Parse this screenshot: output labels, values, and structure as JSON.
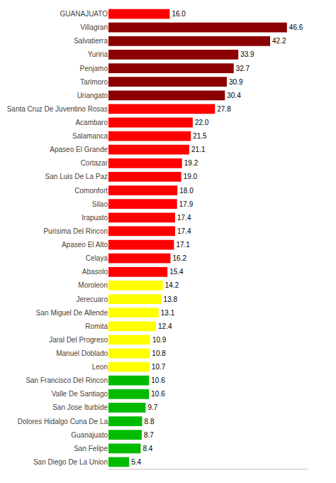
{
  "chart_data": {
    "type": "bar",
    "orientation": "horizontal",
    "categories": [
      "GUANAJUATO",
      "Villagran",
      "Salvatierra",
      "Yuriria",
      "Penjamo",
      "Tarimoro",
      "Uriangato",
      "Santa Cruz De Juventino Rosas",
      "Acambaro",
      "Salamanca",
      "Apaseo El Grande",
      "Cortazar",
      "San Luis De La Paz",
      "Comonfort",
      "Silao",
      "Irapuato",
      "Purisima Del Rincon",
      "Apaseo El Alto",
      "Celaya",
      "Abasolo",
      "Moroleon",
      "Jerecuaro",
      "San Miguel De Allende",
      "Romita",
      "Jaral Del Progreso",
      "Manuel Doblado",
      "Leon",
      "San Francisco Del Rincon",
      "Valle De Santiago",
      "San Jose Iturbide",
      "Dolores Hidalgo Cuna De La",
      "Guanajuato",
      "San Felipe",
      "San Diego De La Union"
    ],
    "values": [
      16.0,
      46.6,
      42.2,
      33.9,
      32.7,
      30.9,
      30.4,
      27.8,
      22.0,
      21.5,
      21.1,
      19.2,
      19.0,
      18.0,
      17.9,
      17.4,
      17.4,
      17.1,
      16.2,
      15.4,
      14.2,
      13.8,
      13.1,
      12.4,
      10.9,
      10.8,
      10.7,
      10.6,
      10.6,
      9.7,
      8.8,
      8.7,
      8.4,
      5.4
    ],
    "value_labels": [
      "16.0",
      "46.6",
      "42.2",
      "33.9",
      "32.7",
      "30.9",
      "30.4",
      "27.8",
      "22.0",
      "21.5",
      "21.1",
      "19.2",
      "19.0",
      "18.0",
      "17.9",
      "17.4",
      "17.4",
      "17.1",
      "16.2",
      "15.4",
      "14.2",
      "13.8",
      "13.1",
      "12.4",
      "10.9",
      "10.8",
      "10.7",
      "10.6",
      "10.6",
      "9.7",
      "8.8",
      "8.7",
      "8.4",
      "5.4"
    ],
    "colors": [
      "#FF0000",
      "#8B0000",
      "#8B0000",
      "#8B0000",
      "#8B0000",
      "#8B0000",
      "#8B0000",
      "#FF0000",
      "#FF0000",
      "#FF0000",
      "#FF0000",
      "#FF0000",
      "#FF0000",
      "#FF0000",
      "#FF0000",
      "#FF0000",
      "#FF0000",
      "#FF0000",
      "#FF0000",
      "#FF0000",
      "#FFFF00",
      "#FFFF00",
      "#FFFF00",
      "#FFFF00",
      "#FFFF00",
      "#FFFF00",
      "#FFFF00",
      "#00BB00",
      "#00BB00",
      "#00BB00",
      "#00BB00",
      "#00BB00",
      "#00BB00",
      "#00BB00"
    ],
    "xlim": [
      0,
      52
    ],
    "xticks": [],
    "data_labels": true,
    "grid": false,
    "tick_labels": "y"
  }
}
